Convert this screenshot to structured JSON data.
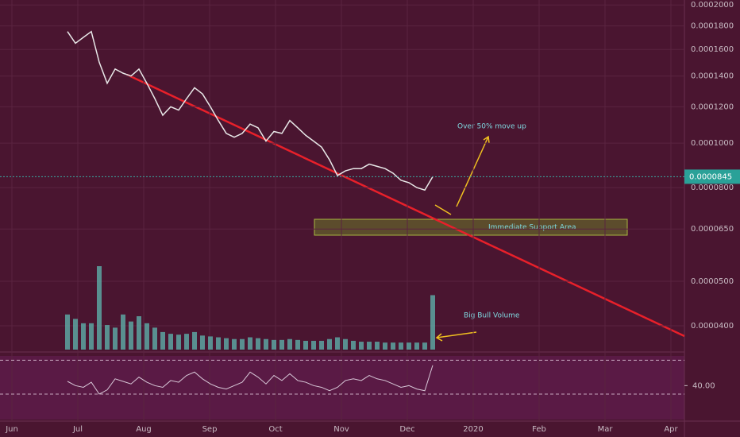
{
  "chart_data": {
    "type": "line",
    "log_scale": true,
    "grid": true,
    "ylim": [
      3.55e-05,
      0.000205
    ],
    "yticks": [
      {
        "value": 0.0002,
        "label": "0.0002000"
      },
      {
        "value": 0.00018,
        "label": "0.0001800"
      },
      {
        "value": 0.00016,
        "label": "0.0001600"
      },
      {
        "value": 0.00014,
        "label": "0.0001400"
      },
      {
        "value": 0.00012,
        "label": "0.0001200"
      },
      {
        "value": 0.0001,
        "label": "0.0001000"
      },
      {
        "value": 8e-05,
        "label": "0.0000800"
      },
      {
        "value": 6.5e-05,
        "label": "0.0000650"
      },
      {
        "value": 5e-05,
        "label": "0.0000500"
      },
      {
        "value": 4e-05,
        "label": "0.0000400"
      }
    ],
    "x_labels": [
      "Jun",
      "Jul",
      "Aug",
      "Sep",
      "Oct",
      "Nov",
      "Dec",
      "2020",
      "Feb",
      "Mar",
      "Apr"
    ],
    "series": [
      {
        "name": "price",
        "color": "#e8e8e8",
        "values": [
          0.000175,
          0.000165,
          0.00017,
          0.000175,
          0.00015,
          0.000135,
          0.000145,
          0.000142,
          0.00014,
          0.000145,
          0.000135,
          0.000125,
          0.000115,
          0.00012,
          0.000118,
          0.000125,
          0.000132,
          0.000128,
          0.00012,
          0.000112,
          0.000105,
          0.000103,
          0.000105,
          0.00011,
          0.000108,
          0.000101,
          0.000106,
          0.000105,
          0.000112,
          0.000108,
          0.000104,
          0.000101,
          9.8e-05,
          9.2e-05,
          8.5e-05,
          8.7e-05,
          8.8e-05,
          8.8e-05,
          9e-05,
          8.9e-05,
          8.8e-05,
          8.6e-05,
          8.3e-05,
          8.2e-05,
          8e-05,
          7.9e-05,
          8.45e-05
        ]
      }
    ],
    "volume": {
      "color": "#5fb8b0",
      "values": [
        40,
        35,
        30,
        30,
        95,
        28,
        25,
        40,
        32,
        38,
        30,
        25,
        20,
        18,
        17,
        18,
        20,
        16,
        15,
        14,
        13,
        12,
        12,
        14,
        13,
        12,
        11,
        11,
        12,
        11,
        10,
        10,
        10,
        12,
        14,
        12,
        10,
        9,
        9,
        9,
        8,
        8,
        8,
        8,
        8,
        8,
        62
      ]
    },
    "rsi": {
      "color": "#d8c8d8",
      "ylim": [
        0,
        75
      ],
      "yticks": [
        {
          "value": 40,
          "label": "40.00"
        }
      ],
      "bands": [
        30,
        70
      ],
      "values": [
        45,
        40,
        38,
        44,
        30,
        35,
        48,
        45,
        42,
        50,
        44,
        40,
        38,
        46,
        44,
        52,
        56,
        48,
        42,
        38,
        36,
        40,
        44,
        56,
        50,
        42,
        52,
        46,
        54,
        46,
        44,
        40,
        38,
        34,
        38,
        46,
        48,
        46,
        52,
        48,
        46,
        42,
        38,
        40,
        36,
        34,
        64
      ]
    },
    "last_price": {
      "value": 8.45e-05,
      "label": "0.0000845"
    },
    "annotations": [
      "Over 50% move up",
      "Immediate Support Area",
      "Big Bull Volume"
    ]
  }
}
